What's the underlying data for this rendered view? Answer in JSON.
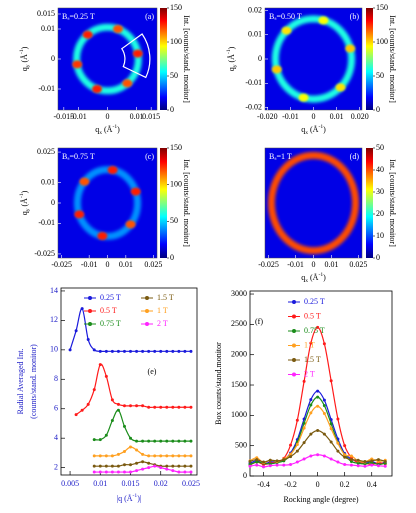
{
  "chart_data": [
    {
      "type": "heatmap",
      "annotation": "Bₐ=0.25 T",
      "panel": "(a)",
      "xlabel": [
        "q",
        "x",
        " (Å",
        "-1",
        ")"
      ],
      "ylabel": [
        "q",
        "y",
        " (Å",
        "-1",
        ")"
      ],
      "xlim": [
        -0.017,
        0.017
      ],
      "ylim": [
        -0.017,
        0.017
      ],
      "xticks": [
        -0.015,
        -0.01,
        0,
        0.01,
        0.015
      ],
      "yticks": [
        -0.01,
        0,
        0.01,
        0.015
      ],
      "zlim": [
        0,
        150
      ],
      "colorbar_ticks": [
        0,
        50,
        100,
        150
      ],
      "colorbar_label": "Int. [counts/stand. monitor]",
      "ring": {
        "radius": 0.0106,
        "value": 60
      },
      "spot_x": [
        0.0104,
        0.0036,
        -0.0068,
        -0.0104,
        -0.0036,
        0.0068
      ],
      "spot_y": [
        0.0018,
        0.01,
        0.0081,
        -0.0018,
        -0.01,
        -0.0081
      ],
      "spot_values": [
        150,
        140,
        150,
        145,
        150,
        140
      ]
    },
    {
      "type": "heatmap",
      "annotation": "Bₐ=0.50 T",
      "panel": "(b)",
      "xlabel": [
        "q",
        "x",
        " (Å",
        "-1",
        ")"
      ],
      "ylabel": [
        "q",
        "y",
        " (Å",
        "-1",
        ")"
      ],
      "xlim": [
        -0.021,
        0.021
      ],
      "ylim": [
        -0.021,
        0.021
      ],
      "xticks": [
        {
          "value": -0.02,
          "label": "-0.020"
        },
        -0.01,
        0,
        0.01,
        {
          "value": 0.02,
          "label": "0.020"
        }
      ],
      "yticks": [
        -0.02,
        -0.01,
        0,
        0.01,
        0.02
      ],
      "zlim": [
        0,
        150
      ],
      "colorbar_ticks": [
        0,
        50,
        100,
        150
      ],
      "colorbar_label": "Int. [counts/stand. monitor]",
      "ring": {
        "radius": 0.0165,
        "value": 60
      },
      "spot_x": [
        0.0159,
        0.0043,
        -0.0117,
        -0.0159,
        -0.0043,
        0.0117
      ],
      "spot_y": [
        0.0043,
        0.0159,
        0.0117,
        -0.0043,
        -0.0159,
        -0.0117
      ],
      "spot_values": [
        120,
        110,
        115,
        120,
        110,
        115
      ]
    },
    {
      "type": "heatmap",
      "annotation": "Bₐ=0.75 T",
      "panel": "(c)",
      "ylabel": [
        "q",
        "y",
        " (Å",
        "-1",
        ")"
      ],
      "xlim": [
        -0.027,
        0.027
      ],
      "ylim": [
        -0.027,
        0.027
      ],
      "xticks": [
        -0.025,
        -0.01,
        0,
        0.01,
        0.025
      ],
      "yticks": [
        -0.025,
        -0.01,
        0,
        0.01,
        0.025
      ],
      "zlim": [
        0,
        150
      ],
      "colorbar_ticks": [
        0,
        50,
        100,
        150
      ],
      "colorbar_label": "Int. [counts/stand. monitor]",
      "ring": {
        "radius": 0.0164,
        "value": 40
      },
      "spot_x": [
        0.0154,
        0.0028,
        -0.0126,
        -0.0154,
        -0.0028,
        0.0126
      ],
      "spot_y": [
        0.0056,
        0.0162,
        0.0105,
        -0.0056,
        -0.0162,
        -0.0105
      ],
      "spot_values": [
        150,
        150,
        140,
        150,
        150,
        140
      ]
    },
    {
      "type": "heatmap",
      "annotation": "Bₐ=1 T",
      "panel": "(d)",
      "xlabel": [
        "q",
        "x",
        " (Å",
        "-1",
        ")"
      ],
      "xlim": [
        -0.027,
        0.027
      ],
      "ylim": [
        -0.027,
        0.027
      ],
      "xticks": [
        -0.025,
        -0.01,
        0,
        0.01,
        0.025
      ],
      "zlim": [
        0,
        50
      ],
      "colorbar_ticks": [
        0,
        10,
        20,
        30,
        40,
        50
      ],
      "colorbar_label": "Int. [counts/stand. monitor]",
      "ring": {
        "radius": 0.0234,
        "value": 40
      },
      "spot_x": [],
      "spot_y": [],
      "spot_values": []
    },
    {
      "type": "line",
      "panel": "(e)",
      "label_color": "#2020c8",
      "xlabel": [
        "|q (Å",
        "-1",
        ")|"
      ],
      "ylabel": [
        "Radial Averaged Int.",
        "(counts/stand. monitor)"
      ],
      "x": [
        0.005,
        0.006,
        0.007,
        0.008,
        0.009,
        0.01,
        0.011,
        0.012,
        0.013,
        0.014,
        0.015,
        0.016,
        0.017,
        0.018,
        0.019,
        0.02,
        0.021,
        0.022,
        0.023,
        0.024,
        0.025
      ],
      "xlim": [
        0.0035,
        0.026
      ],
      "ylim": [
        1.5,
        14.2
      ],
      "xticks": [
        0.005,
        0.01,
        0.015,
        0.02,
        0.025
      ],
      "yticks": [
        2,
        4,
        6,
        8,
        10,
        12,
        14
      ],
      "series": [
        {
          "name": "0.25 T",
          "color": "#1a1adc",
          "values": [
            10.0,
            11.3,
            12.8,
            10.7,
            10.0,
            9.9,
            9.9,
            9.9,
            9.9,
            9.9,
            9.9,
            9.9,
            9.9,
            9.9,
            9.9,
            9.9,
            9.9,
            9.9,
            9.9,
            9.9,
            9.9
          ]
        },
        {
          "name": "0.5 T",
          "color": "#ff1a1a",
          "values": [
            null,
            5.6,
            5.9,
            6.3,
            7.3,
            9.0,
            8.2,
            6.6,
            6.3,
            6.2,
            6.2,
            6.2,
            6.2,
            6.1,
            6.1,
            6.1,
            6.1,
            6.1,
            6.1,
            6.1,
            6.1
          ]
        },
        {
          "name": "0.75 T",
          "color": "#1a8c1a",
          "values": [
            null,
            null,
            null,
            null,
            3.9,
            3.9,
            4.2,
            5.2,
            5.9,
            4.8,
            4.0,
            3.8,
            3.8,
            3.8,
            3.8,
            3.8,
            3.8,
            3.8,
            3.8,
            3.8,
            3.8
          ]
        },
        {
          "name": "1.5 T",
          "color": "#7a5a10",
          "values": [
            null,
            null,
            null,
            null,
            2.1,
            2.1,
            2.1,
            2.1,
            2.1,
            2.2,
            2.2,
            2.3,
            2.4,
            2.3,
            2.2,
            2.1,
            2.1,
            2.1,
            2.1,
            2.1,
            2.1
          ]
        },
        {
          "name": "1 T",
          "color": "#ffa020",
          "values": [
            null,
            null,
            null,
            null,
            2.8,
            2.8,
            2.8,
            2.8,
            2.9,
            3.1,
            3.4,
            3.2,
            2.9,
            2.8,
            2.8,
            2.8,
            2.8,
            2.8,
            2.8,
            2.8,
            2.8
          ]
        },
        {
          "name": "2 T",
          "color": "#ff22ff",
          "values": [
            null,
            null,
            null,
            null,
            1.7,
            1.7,
            1.7,
            1.7,
            1.7,
            1.7,
            1.7,
            1.8,
            1.9,
            2.0,
            2.1,
            2.0,
            1.9,
            1.8,
            1.7,
            1.7,
            1.7
          ]
        }
      ]
    },
    {
      "type": "line",
      "panel": "(f)",
      "label_color": "#000000",
      "xlabel": "Rocking angle (degree)",
      "ylabel": "Box counts/stand.monitor",
      "x": [
        -0.5,
        -0.45,
        -0.4,
        -0.35,
        -0.3,
        -0.25,
        -0.2,
        -0.15,
        -0.1,
        -0.05,
        0,
        0.05,
        0.1,
        0.15,
        0.2,
        0.25,
        0.3,
        0.35,
        0.4,
        0.45,
        0.5
      ],
      "xlim": [
        -0.5,
        0.55
      ],
      "ylim": [
        0,
        3050
      ],
      "xticks": [
        -0.4,
        -0.2,
        0,
        0.2,
        0.4
      ],
      "yticks": [
        0,
        500,
        1000,
        1500,
        2000,
        2500,
        3000
      ],
      "series": [
        {
          "name": "0.25 T",
          "color": "#1a1adc",
          "values": [
            210,
            250,
            200,
            230,
            240,
            270,
            380,
            600,
            940,
            1260,
            1400,
            1250,
            930,
            610,
            370,
            280,
            230,
            220,
            240,
            200,
            230
          ]
        },
        {
          "name": "0.5 T",
          "color": "#ff1a1a",
          "values": [
            180,
            230,
            190,
            210,
            230,
            290,
            510,
            920,
            1560,
            2190,
            2450,
            2180,
            1570,
            940,
            500,
            300,
            220,
            210,
            190,
            220,
            200
          ]
        },
        {
          "name": "0.75 T",
          "color": "#1a8c1a",
          "values": [
            190,
            230,
            210,
            200,
            220,
            250,
            350,
            560,
            870,
            1170,
            1300,
            1160,
            860,
            550,
            350,
            240,
            210,
            200,
            220,
            190,
            210
          ]
        },
        {
          "name": "1 T",
          "color": "#ffa020",
          "values": [
            250,
            300,
            220,
            260,
            240,
            280,
            360,
            520,
            790,
            1040,
            1150,
            1030,
            780,
            540,
            350,
            330,
            250,
            230,
            280,
            240,
            260
          ]
        },
        {
          "name": "1.5 T",
          "color": "#7a5a10",
          "values": [
            240,
            270,
            230,
            260,
            250,
            270,
            320,
            410,
            550,
            690,
            750,
            690,
            560,
            410,
            310,
            270,
            260,
            240,
            250,
            270,
            240
          ]
        },
        {
          "name": "2 T",
          "color": "#ff22ff",
          "values": [
            160,
            180,
            150,
            170,
            180,
            180,
            190,
            230,
            280,
            330,
            350,
            330,
            280,
            230,
            190,
            180,
            170,
            160,
            180,
            170,
            160
          ]
        }
      ]
    }
  ]
}
